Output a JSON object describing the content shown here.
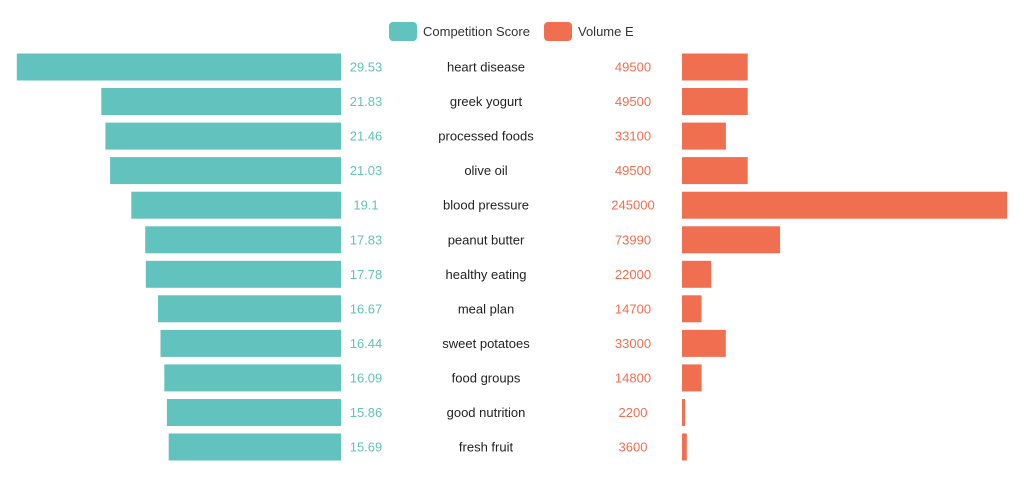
{
  "colors": {
    "competition": "#62c2be",
    "volume": "#ef6f50",
    "label_text": "#222222",
    "legend_text": "#333333"
  },
  "legend": {
    "competition_label": "Competition Score",
    "volume_label": "Volume E"
  },
  "chart_data": {
    "type": "bar",
    "orientation": "horizontal-butterfly",
    "categories": [
      "heart disease",
      "greek yogurt",
      "processed foods",
      "olive oil",
      "blood pressure",
      "peanut butter",
      "healthy eating",
      "meal plan",
      "sweet potatoes",
      "food groups",
      "good nutrition",
      "fresh fruit"
    ],
    "series": [
      {
        "name": "Competition Score",
        "values": [
          29.53,
          21.83,
          21.46,
          21.03,
          19.1,
          17.83,
          17.78,
          16.67,
          16.44,
          16.09,
          15.86,
          15.69
        ],
        "labels": [
          "29.53",
          "21.83",
          "21.46",
          "21.03",
          "19.1",
          "17.83",
          "17.78",
          "16.67",
          "16.44",
          "16.09",
          "15.86",
          "15.69"
        ]
      },
      {
        "name": "Volume E",
        "values": [
          49500,
          49500,
          33100,
          49500,
          245000,
          73990,
          22000,
          14700,
          33000,
          14800,
          2200,
          3600
        ],
        "labels": [
          "49500",
          "49500",
          "33100",
          "49500",
          "245000",
          "73990",
          "22000",
          "14700",
          "33000",
          "14800",
          "2200",
          "3600"
        ]
      }
    ],
    "legend_position": "top-center",
    "grid": false
  }
}
